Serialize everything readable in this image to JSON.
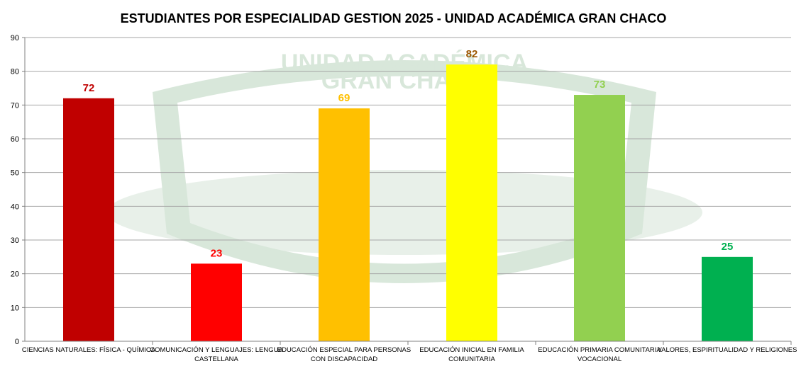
{
  "chart_data": {
    "type": "bar",
    "title": "ESTUDIANTES POR ESPECIALIDAD GESTION 2025 - UNIDAD ACADÉMICA GRAN CHACO",
    "watermark_text": [
      "UNIDAD ACADÉMICA",
      "GRAN CHACO"
    ],
    "categories": [
      [
        "CIENCIAS NATURALES: FÍSICA - QUÍMICA"
      ],
      [
        "COMUNICACIÓN Y LENGUAJES: LENGUA",
        "CASTELLANA"
      ],
      [
        "EDUCACIÓN ESPECIAL PARA PERSONAS",
        "CON DISCAPACIDAD"
      ],
      [
        "EDUCACIÓN INICIAL EN FAMILIA",
        "COMUNITARIA"
      ],
      [
        "EDUCACIÓN PRIMARIA COMUNITARIA",
        "VOCACIONAL"
      ],
      [
        "VALORES, ESPIRITUALIDAD Y RELIGIONES"
      ]
    ],
    "values": [
      72,
      23,
      69,
      82,
      73,
      25
    ],
    "bar_colors": [
      "#c00000",
      "#ff0000",
      "#ffc000",
      "#ffff00",
      "#92d050",
      "#00b050"
    ],
    "label_colors": [
      "#c00000",
      "#ff0000",
      "#ffc000",
      "#9c5700",
      "#92d050",
      "#00b050"
    ],
    "ylim": [
      0,
      90
    ],
    "yticks": [
      0,
      10,
      20,
      30,
      40,
      50,
      60,
      70,
      80,
      90
    ],
    "xlabel": "",
    "ylabel": "",
    "grid": true,
    "legend": "none"
  }
}
